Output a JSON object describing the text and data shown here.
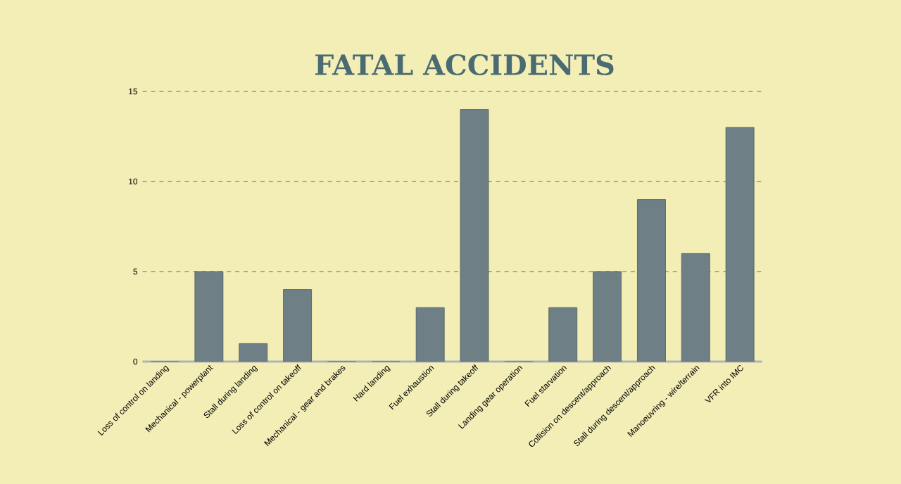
{
  "chart_data": {
    "type": "bar",
    "title": "FATAL ACCIDENTS",
    "categories": [
      "Loss of control on landing",
      "Mechanical - powerplant",
      "Stall during  landing",
      "Loss of control on takeoff",
      "Mechanical - gear and brakes",
      "Hard  landing",
      "Fuel exhaustion",
      "Stall during takeoff",
      "Landing gear operation",
      "Fuel starvation",
      "Collision on descent/approach",
      "Stall during descent/approach",
      "Manoeuvring - wire/terrain",
      "VFR into IMC"
    ],
    "values": [
      0,
      5,
      1,
      4,
      0,
      0,
      3,
      14,
      0,
      3,
      5,
      9,
      6,
      13
    ],
    "color": "#6e7f85",
    "ylim": [
      0,
      15
    ],
    "yticks": [
      0,
      5,
      10,
      15
    ],
    "grid": "y"
  }
}
